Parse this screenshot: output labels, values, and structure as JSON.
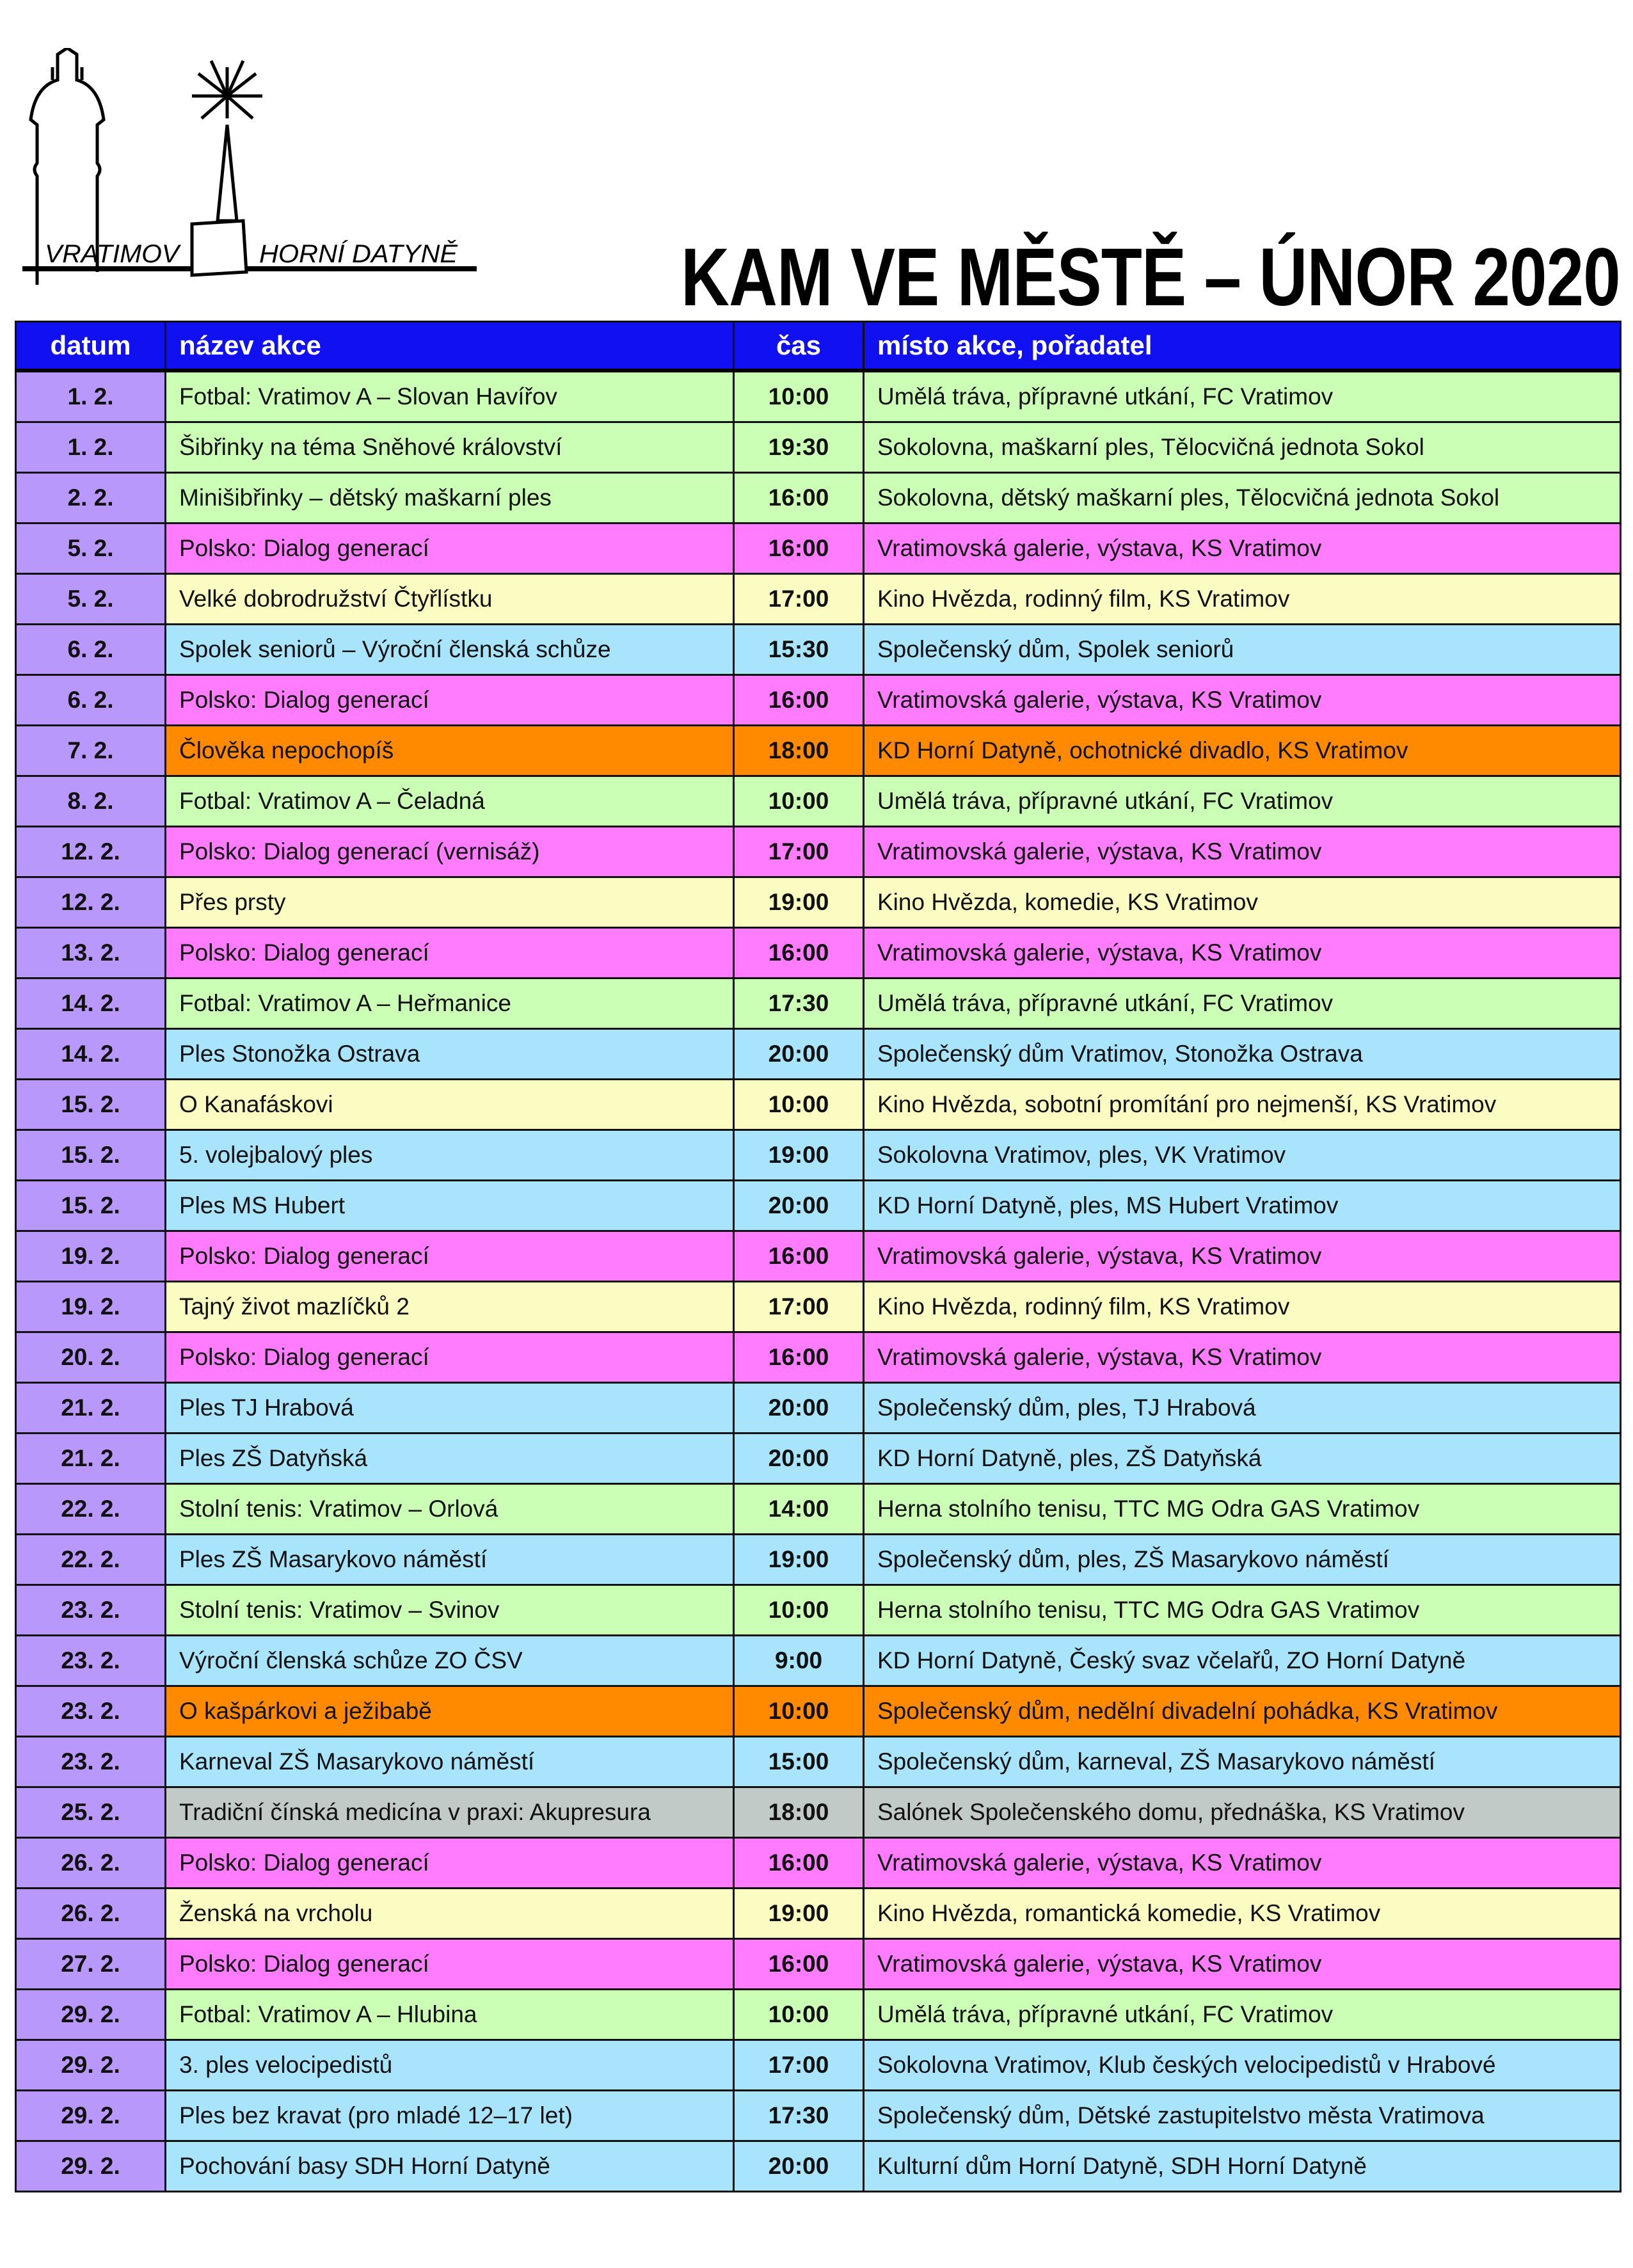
{
  "logo": {
    "left_text": "VRATIMOV",
    "right_text": "HORNÍ DATYNĚ"
  },
  "title": "KAM VE MĚSTĚ – ÚNOR 2020",
  "colors": {
    "header": "#1010f0",
    "date": "#b898fa",
    "sport": "#ccffb6",
    "gallery": "#ff7cff",
    "cinema": "#fafcc2",
    "social": "#a8e4fc",
    "theatre": "#ff8a00",
    "lecture": "#c2cac8"
  },
  "headers": {
    "date": "datum",
    "name": "název akce",
    "time": "čas",
    "place": "místo akce, pořadatel"
  },
  "rows": [
    {
      "date": "1. 2.",
      "name": "Fotbal: Vratimov A – Slovan Havířov",
      "time": "10:00",
      "place": "Umělá tráva, přípravné utkání, FC Vratimov",
      "category": "sport"
    },
    {
      "date": "1. 2.",
      "name": "Šibřinky na téma Sněhové království",
      "time": "19:30",
      "place": "Sokolovna, maškarní ples, Tělocvičná jednota Sokol",
      "category": "sport"
    },
    {
      "date": "2. 2.",
      "name": "Minišibřinky – dětský maškarní ples",
      "time": "16:00",
      "place": "Sokolovna, dětský maškarní ples, Tělocvičná jednota Sokol",
      "category": "sport"
    },
    {
      "date": "5. 2.",
      "name": "Polsko: Dialog generací",
      "time": "16:00",
      "place": "Vratimovská galerie, výstava, KS Vratimov",
      "category": "gallery"
    },
    {
      "date": "5. 2.",
      "name": "Velké dobrodružství Čtyřlístku",
      "time": "17:00",
      "place": "Kino Hvězda, rodinný film, KS Vratimov",
      "category": "cinema"
    },
    {
      "date": "6. 2.",
      "name": "Spolek seniorů – Výroční členská schůze",
      "time": "15:30",
      "place": "Společenský dům, Spolek seniorů",
      "category": "social"
    },
    {
      "date": "6. 2.",
      "name": "Polsko: Dialog generací",
      "time": "16:00",
      "place": "Vratimovská galerie, výstava, KS Vratimov",
      "category": "gallery"
    },
    {
      "date": "7. 2.",
      "name": "Člověka nepochopíš",
      "time": "18:00",
      "place": "KD Horní Datyně, ochotnické divadlo, KS Vratimov",
      "category": "theatre"
    },
    {
      "date": "8. 2.",
      "name": "Fotbal: Vratimov A – Čeladná",
      "time": "10:00",
      "place": "Umělá tráva, přípravné utkání, FC Vratimov",
      "category": "sport"
    },
    {
      "date": "12. 2.",
      "name": "Polsko: Dialog generací (vernisáž)",
      "time": "17:00",
      "place": "Vratimovská galerie, výstava, KS Vratimov",
      "category": "gallery"
    },
    {
      "date": "12. 2.",
      "name": "Přes prsty",
      "time": "19:00",
      "place": "Kino Hvězda, komedie, KS Vratimov",
      "category": "cinema"
    },
    {
      "date": "13. 2.",
      "name": "Polsko: Dialog generací",
      "time": "16:00",
      "place": "Vratimovská galerie, výstava, KS Vratimov",
      "category": "gallery"
    },
    {
      "date": "14. 2.",
      "name": "Fotbal: Vratimov A – Heřmanice",
      "time": "17:30",
      "place": "Umělá tráva, přípravné utkání, FC Vratimov",
      "category": "sport"
    },
    {
      "date": "14. 2.",
      "name": "Ples Stonožka Ostrava",
      "time": "20:00",
      "place": "Společenský dům Vratimov, Stonožka Ostrava",
      "category": "social"
    },
    {
      "date": "15. 2.",
      "name": "O Kanafáskovi",
      "time": "10:00",
      "place": "Kino Hvězda, sobotní promítání pro nejmenší, KS Vratimov",
      "category": "cinema"
    },
    {
      "date": "15. 2.",
      "name": "5. volejbalový ples",
      "time": "19:00",
      "place": "Sokolovna Vratimov, ples, VK Vratimov",
      "category": "social"
    },
    {
      "date": "15. 2.",
      "name": "Ples MS Hubert",
      "time": "20:00",
      "place": "KD Horní Datyně, ples, MS Hubert Vratimov",
      "category": "social"
    },
    {
      "date": "19. 2.",
      "name": "Polsko: Dialog generací",
      "time": "16:00",
      "place": "Vratimovská galerie, výstava, KS Vratimov",
      "category": "gallery"
    },
    {
      "date": "19. 2.",
      "name": "Tajný život mazlíčků 2",
      "time": "17:00",
      "place": "Kino Hvězda, rodinný film, KS Vratimov",
      "category": "cinema"
    },
    {
      "date": "20. 2.",
      "name": "Polsko: Dialog generací",
      "time": "16:00",
      "place": "Vratimovská galerie, výstava, KS Vratimov",
      "category": "gallery"
    },
    {
      "date": "21. 2.",
      "name": "Ples TJ Hrabová",
      "time": "20:00",
      "place": "Společenský dům, ples, TJ Hrabová",
      "category": "social"
    },
    {
      "date": "21. 2.",
      "name": "Ples ZŠ Datyňská",
      "time": "20:00",
      "place": "KD Horní Datyně, ples, ZŠ Datyňská",
      "category": "social"
    },
    {
      "date": "22. 2.",
      "name": "Stolní tenis: Vratimov  – Orlová",
      "time": "14:00",
      "place": "Herna stolního tenisu, TTC MG Odra GAS Vratimov",
      "category": "sport"
    },
    {
      "date": "22. 2.",
      "name": "Ples ZŠ Masarykovo náměstí",
      "time": "19:00",
      "place": "Společenský dům, ples, ZŠ Masarykovo náměstí",
      "category": "social"
    },
    {
      "date": "23. 2.",
      "name": "Stolní tenis: Vratimov  – Svinov",
      "time": "10:00",
      "place": "Herna stolního tenisu, TTC MG Odra GAS Vratimov",
      "category": "sport"
    },
    {
      "date": "23. 2.",
      "name": "Výroční členská schůze ZO ČSV",
      "time": "9:00",
      "place": "KD Horní Datyně, Český svaz včelařů, ZO Horní Datyně",
      "category": "social"
    },
    {
      "date": "23. 2.",
      "name": "O kašpárkovi a ježibabě",
      "time": "10:00",
      "place": "Společenský dům, nedělní divadelní pohádka, KS Vratimov",
      "category": "theatre"
    },
    {
      "date": "23. 2.",
      "name": "Karneval ZŠ Masarykovo náměstí",
      "time": "15:00",
      "place": "Společenský dům, karneval, ZŠ Masarykovo náměstí",
      "category": "social"
    },
    {
      "date": "25. 2.",
      "name": "Tradiční čínská medicína v praxi: Akupresura",
      "time": "18:00",
      "place": "Salónek Společenského domu, přednáška, KS Vratimov",
      "category": "lecture"
    },
    {
      "date": "26. 2.",
      "name": "Polsko: Dialog generací",
      "time": "16:00",
      "place": "Vratimovská galerie, výstava, KS Vratimov",
      "category": "gallery"
    },
    {
      "date": "26. 2.",
      "name": "Ženská na vrcholu",
      "time": "19:00",
      "place": "Kino Hvězda, romantická komedie, KS Vratimov",
      "category": "cinema"
    },
    {
      "date": "27. 2.",
      "name": "Polsko: Dialog generací",
      "time": "16:00",
      "place": "Vratimovská galerie, výstava, KS Vratimov",
      "category": "gallery"
    },
    {
      "date": "29. 2.",
      "name": "Fotbal: Vratimov A – Hlubina",
      "time": "10:00",
      "place": "Umělá tráva, přípravné utkání, FC Vratimov",
      "category": "sport"
    },
    {
      "date": "29. 2.",
      "name": "3. ples velocipedistů",
      "time": "17:00",
      "place": "Sokolovna Vratimov, Klub českých velocipedistů v Hrabové",
      "category": "social"
    },
    {
      "date": "29. 2.",
      "name": "Ples bez kravat (pro mladé 12–17 let)",
      "time": "17:30",
      "place": "Společenský dům, Dětské zastupitelstvo města Vratimova",
      "category": "social"
    },
    {
      "date": "29. 2.",
      "name": "Pochování basy SDH Horní Datyně",
      "time": "20:00",
      "place": "Kulturní dům Horní Datyně, SDH Horní Datyně",
      "category": "social"
    }
  ]
}
